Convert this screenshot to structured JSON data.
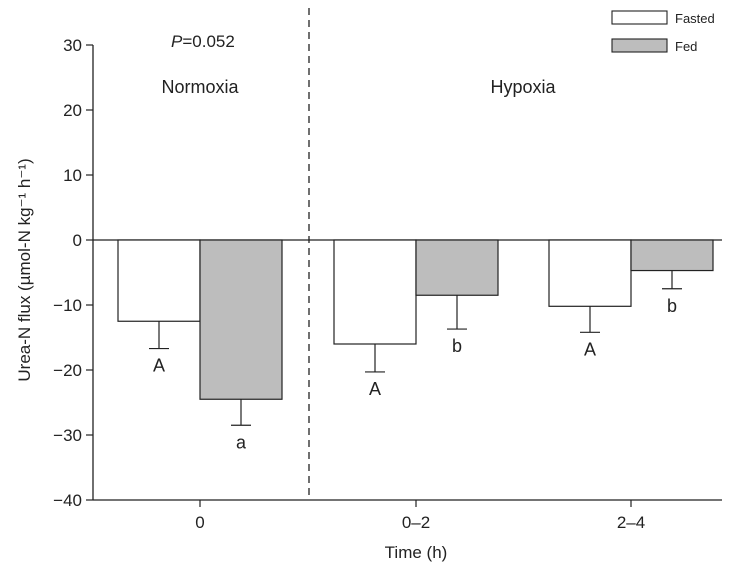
{
  "chart_data": {
    "type": "bar",
    "categories": [
      "0",
      "0–2",
      "2–4"
    ],
    "series": [
      {
        "name": "Fasted",
        "values": [
          -12.5,
          -16.0,
          -10.2
        ],
        "errors": [
          4.2,
          4.3,
          4.0
        ],
        "color": "#ffffff",
        "sig": [
          "A",
          "A",
          "A"
        ]
      },
      {
        "name": "Fed",
        "values": [
          -24.5,
          -8.5,
          -4.7
        ],
        "errors": [
          4.0,
          5.2,
          2.8
        ],
        "color": "#bdbdbd",
        "sig": [
          "a",
          "b",
          "b"
        ]
      }
    ],
    "xlabel": "Time (h)",
    "ylabel": "Urea-N flux (µmol-N kg⁻¹ h⁻¹)",
    "ylim": [
      -40,
      30
    ],
    "yticks": [
      -40,
      -30,
      -20,
      -10,
      0,
      10,
      20,
      30
    ],
    "panels": [
      "Normoxia",
      "Hypoxia"
    ],
    "annotation": {
      "p_symbol": "P",
      "p_text": "=0.052"
    },
    "grid": false,
    "legend_position": "top-right"
  }
}
